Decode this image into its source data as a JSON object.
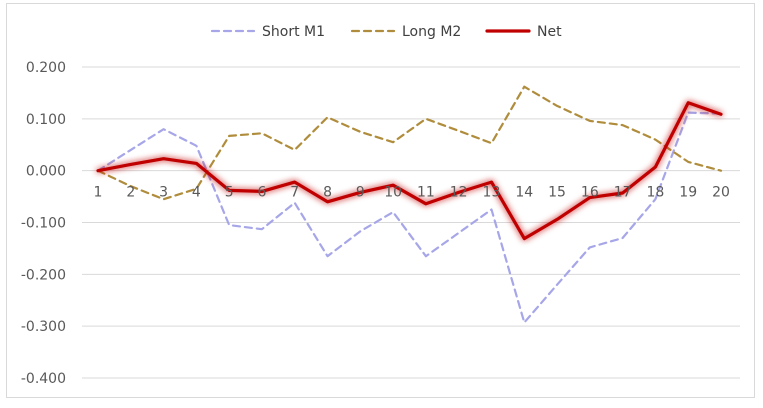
{
  "chart_data": {
    "type": "line",
    "x": [
      "1",
      "2",
      "3",
      "4",
      "5",
      "6",
      "7",
      "8",
      "9",
      "10",
      "11",
      "12",
      "13",
      "14",
      "15",
      "16",
      "17",
      "18",
      "19",
      "20"
    ],
    "ylim": [
      -0.4,
      0.2
    ],
    "yticks": [
      "0.200",
      "0.100",
      "0.000",
      "-0.100",
      "-0.200",
      "-0.300",
      "-0.400"
    ],
    "grid": true,
    "legend_position": "top",
    "series": [
      {
        "name": "Short M1",
        "color": "#a6a6e8",
        "style": "dashed",
        "values": [
          0.0,
          0.04,
          0.08,
          0.048,
          -0.105,
          -0.113,
          -0.062,
          -0.165,
          -0.117,
          -0.08,
          -0.165,
          -0.12,
          -0.075,
          -0.293,
          -0.22,
          -0.148,
          -0.13,
          -0.055,
          0.112,
          0.11
        ]
      },
      {
        "name": "Long M2",
        "color": "#b08d3c",
        "style": "dashed",
        "values": [
          0.0,
          -0.03,
          -0.055,
          -0.035,
          0.067,
          0.072,
          0.04,
          0.103,
          0.075,
          0.055,
          0.1,
          0.077,
          0.053,
          0.162,
          0.125,
          0.096,
          0.088,
          0.06,
          0.017,
          0.0
        ]
      },
      {
        "name": "Net",
        "color": "#c00000",
        "style": "solid",
        "values": [
          0.0,
          0.012,
          0.023,
          0.014,
          -0.038,
          -0.04,
          -0.022,
          -0.06,
          -0.042,
          -0.028,
          -0.064,
          -0.042,
          -0.022,
          -0.131,
          -0.094,
          -0.052,
          -0.043,
          0.007,
          0.131,
          0.109
        ]
      }
    ]
  }
}
